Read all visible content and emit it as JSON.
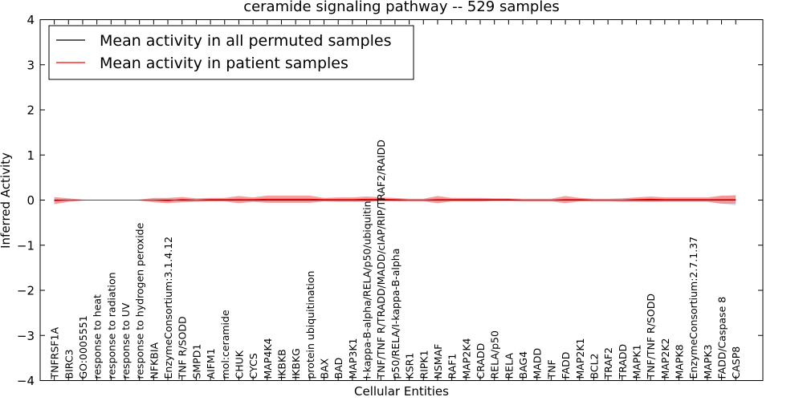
{
  "chart_data": {
    "type": "line",
    "title": "ceramide signaling pathway -- 529 samples",
    "xlabel": "Cellular Entities",
    "ylabel": "Inferred Activity",
    "ylim": [
      -4,
      4
    ],
    "yticks": [
      "−4",
      "−3",
      "−2",
      "−1",
      "0",
      "1",
      "2",
      "3",
      "4"
    ],
    "grid": false,
    "legend_position": "top-left",
    "colors": {
      "permuted": "#000000",
      "patient": "#ff0000",
      "patient_band": "#f28080",
      "permuted_band": "#c8c8d8"
    },
    "categories": [
      "TNFRSF1A",
      "BIRC3",
      "GO:0005551",
      "response to heat",
      "response to radiation",
      "response to UV",
      "response to hydrogen peroxide",
      "NFKBIA",
      "EnzymeConsortium:3.1.4.12",
      "TNF R/SODD",
      "SMPD1",
      "AIFM1",
      "mol:ceramide",
      "CHUK",
      "CYCS",
      "MAP4K4",
      "IKBKB",
      "IKBKG",
      "protein ubiquitination",
      "BAX",
      "BAD",
      "MAP3K1",
      "I-kappa-B-alpha/RELA/p50/ubiquitin",
      "TNF/TNF R/TRADD/MADD/cIAP/RIP/TRAF2/RAIDD",
      "p50/RELA/I-kappa-B-alpha",
      "KSR1",
      "RIPK1",
      "NSMAF",
      "RAF1",
      "MAP2K4",
      "CRADD",
      "RELA/p50",
      "RELA",
      "BAG4",
      "MADD",
      "TNF",
      "FADD",
      "MAP2K1",
      "BCL2",
      "TRAF2",
      "TRADD",
      "MAPK1",
      "TNF/TNF R/SODD",
      "MAP2K2",
      "MAPK8",
      "EnzymeConsortium:2.7.1.37",
      "MAPK3",
      "FADD/Caspase 8",
      "CASP8"
    ],
    "series": [
      {
        "name": "Mean activity in all permuted samples",
        "values": [
          0,
          0,
          0,
          0,
          0,
          0,
          0,
          0,
          0,
          0,
          0,
          0,
          0,
          0,
          0,
          0,
          0,
          0,
          0,
          0,
          0,
          0,
          0,
          0,
          0,
          0,
          0,
          0,
          0,
          0,
          0,
          0,
          0,
          0,
          0,
          0,
          0,
          0,
          0,
          0,
          0,
          0,
          0,
          0,
          0,
          0,
          0,
          0,
          0
        ],
        "band": [
          0.02,
          0.02,
          0.01,
          0.0,
          0.0,
          0.0,
          0.0,
          0.02,
          0.03,
          0.03,
          0.02,
          0.02,
          0.02,
          0.05,
          0.03,
          0.05,
          0.05,
          0.05,
          0.05,
          0.02,
          0.03,
          0.03,
          0.03,
          0.02,
          0.02,
          0.02,
          0.02,
          0.05,
          0.03,
          0.03,
          0.03,
          0.02,
          0.02,
          0.02,
          0.02,
          0.02,
          0.03,
          0.02,
          0.02,
          0.02,
          0.03,
          0.03,
          0.04,
          0.03,
          0.03,
          0.03,
          0.03,
          0.08,
          0.12
        ]
      },
      {
        "name": "Mean activity in patient samples",
        "values": [
          -0.01,
          0,
          0,
          0,
          0,
          0,
          0,
          0,
          -0.01,
          0.01,
          0,
          0.01,
          0.01,
          0.01,
          0.01,
          0.02,
          0.02,
          0.02,
          0.02,
          0.01,
          0.01,
          0.01,
          0.02,
          0.02,
          0.01,
          0,
          0,
          0.01,
          0.01,
          0.01,
          0.01,
          0.01,
          0.01,
          0,
          0,
          0,
          0.01,
          0.01,
          0,
          0,
          0,
          0.01,
          0.02,
          0.01,
          0.01,
          0.01,
          0.01,
          0.01,
          0.01
        ],
        "band": [
          0.08,
          0.04,
          0.01,
          0.0,
          0.0,
          0.0,
          0.01,
          0.05,
          0.06,
          0.06,
          0.04,
          0.04,
          0.04,
          0.08,
          0.05,
          0.08,
          0.08,
          0.08,
          0.08,
          0.04,
          0.05,
          0.05,
          0.06,
          0.04,
          0.04,
          0.03,
          0.03,
          0.08,
          0.04,
          0.04,
          0.04,
          0.03,
          0.03,
          0.03,
          0.03,
          0.03,
          0.08,
          0.04,
          0.03,
          0.03,
          0.04,
          0.05,
          0.06,
          0.05,
          0.05,
          0.05,
          0.05,
          0.09,
          0.09
        ]
      }
    ]
  }
}
